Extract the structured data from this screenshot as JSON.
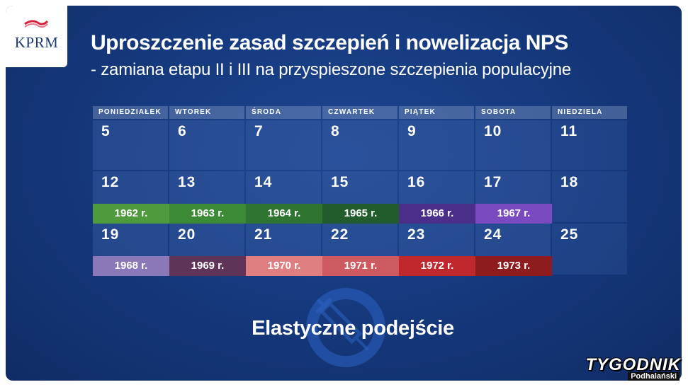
{
  "logo": {
    "text": "KPRM"
  },
  "title": "Uproszczenie zasad szczepień i nowelizacja NPS",
  "subtitle": "- zamiana etapu II i III na przyspieszone szczepienia populacyjne",
  "calendar": {
    "days_of_week": [
      "PONIEDZIAŁEK",
      "WTOREK",
      "ŚRODA",
      "CZWARTEK",
      "PIĄTEK",
      "SOBOTA",
      "NIEDZIELA"
    ],
    "weeks": [
      {
        "days": [
          "5",
          "6",
          "7",
          "8",
          "9",
          "10",
          "11"
        ],
        "years": []
      },
      {
        "days": [
          "12",
          "13",
          "14",
          "15",
          "16",
          "17",
          "18"
        ],
        "years": [
          {
            "label": "1962 r.",
            "color": "#4e9a3c"
          },
          {
            "label": "1963 r.",
            "color": "#3d8a36"
          },
          {
            "label": "1964 r.",
            "color": "#2f7430"
          },
          {
            "label": "1965 r.",
            "color": "#235c2c"
          },
          {
            "label": "1966 r.",
            "color": "#4b2e8a"
          },
          {
            "label": "1967 r.",
            "color": "#7a4bc0"
          }
        ]
      },
      {
        "days": [
          "19",
          "20",
          "21",
          "22",
          "23",
          "24",
          "25"
        ],
        "years": [
          {
            "label": "1968 r.",
            "color": "#8a78b8"
          },
          {
            "label": "1969 r.",
            "color": "#5e3558"
          },
          {
            "label": "1970 r.",
            "color": "#e07f82"
          },
          {
            "label": "1971 r.",
            "color": "#cc5a60"
          },
          {
            "label": "1972 r.",
            "color": "#c0282e"
          },
          {
            "label": "1973 r.",
            "color": "#8e1b1e"
          }
        ]
      }
    ]
  },
  "tagline": "Elastyczne podejście",
  "watermark": {
    "main": "TYGODNIK",
    "sub": "Podhalański"
  },
  "icons": {
    "logo_flag": "polish-flag-icon",
    "vaccine": "syringe-circle-icon"
  }
}
